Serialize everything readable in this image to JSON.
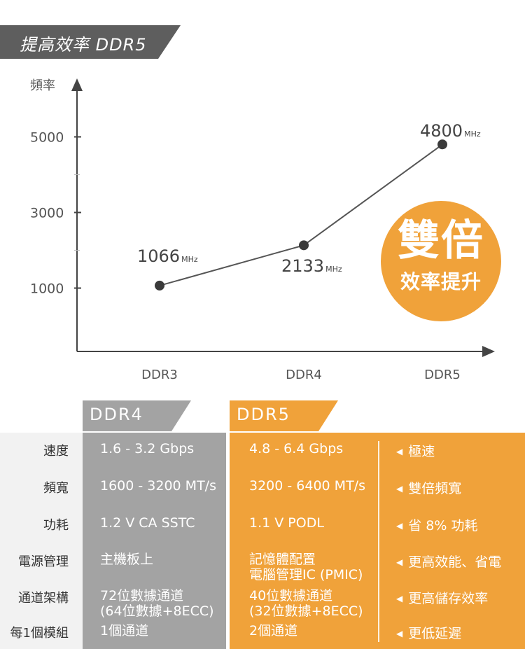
{
  "title": "提高效率 DDR5",
  "chart_data": {
    "type": "line",
    "ylabel": "頻率",
    "yticks": [
      5000,
      3000,
      1000
    ],
    "categories": [
      "DDR3",
      "DDR4",
      "DDR5"
    ],
    "values": [
      1066,
      2133,
      4800
    ],
    "unit": "MHz",
    "point_labels": [
      "1066",
      "2133",
      "4800"
    ]
  },
  "badge": {
    "big": "雙倍",
    "small": "效率提升"
  },
  "colors": {
    "ddr4": "#a3a3a3",
    "ddr5": "#f0a23a",
    "title_bg": "#5e5e5e",
    "line": "#555555"
  },
  "table": {
    "col_ddr4": "DDR4",
    "col_ddr5": "DDR5",
    "rows": [
      {
        "label": "速度",
        "ddr4": [
          "1.6 - 3.2 Gbps"
        ],
        "ddr5": [
          "4.8 - 6.4 Gbps"
        ],
        "note": "極速"
      },
      {
        "label": "頻寬",
        "ddr4": [
          "1600 - 3200 MT/s"
        ],
        "ddr5": [
          "3200 - 6400 MT/s"
        ],
        "note": "雙倍頻寬"
      },
      {
        "label": "功耗",
        "ddr4": [
          "1.2 V CA SSTC"
        ],
        "ddr5": [
          "1.1 V PODL"
        ],
        "note": "省 8% 功耗"
      },
      {
        "label": "電源管理",
        "ddr4": [
          "主機板上"
        ],
        "ddr5": [
          "記憶體配置",
          "電腦管理IC (PMIC)"
        ],
        "note": "更高效能、省電"
      },
      {
        "label": "通道架構",
        "ddr4": [
          "72位數據通道",
          "(64位數據+8ECC)"
        ],
        "ddr5": [
          "40位數據通道",
          "(32位數據+8ECC)"
        ],
        "note": "更高儲存效率"
      },
      {
        "label": "每1個模組",
        "ddr4": [
          "1個通道"
        ],
        "ddr5": [
          "2個通道"
        ],
        "note": "更低延遲"
      }
    ]
  }
}
